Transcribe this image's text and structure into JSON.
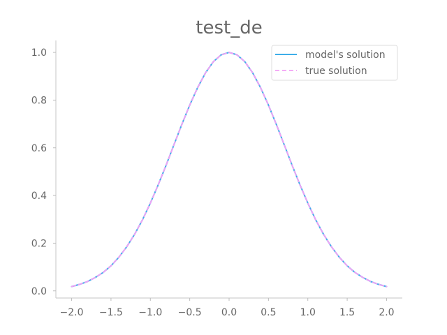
{
  "chart_data": {
    "type": "line",
    "title": "test_de",
    "xlabel": "",
    "ylabel": "",
    "xlim": [
      -2.2,
      2.2
    ],
    "ylim": [
      -0.03,
      1.05
    ],
    "x_ticks": [
      -2.0,
      -1.5,
      -1.0,
      -0.5,
      0.0,
      0.5,
      1.0,
      1.5,
      2.0
    ],
    "x_tick_labels": [
      "−2.0",
      "−1.5",
      "−1.0",
      "−0.5",
      "0.0",
      "0.5",
      "1.0",
      "1.5",
      "2.0"
    ],
    "y_ticks": [
      0.0,
      0.2,
      0.4,
      0.6,
      0.8,
      1.0
    ],
    "y_tick_labels": [
      "0.0",
      "0.2",
      "0.4",
      "0.6",
      "0.8",
      "1.0"
    ],
    "grid": false,
    "legend_position": "top-right",
    "series": [
      {
        "name": "model's solution",
        "color": "#3daee9",
        "line_style": "solid",
        "x": [
          -2.0,
          -1.9,
          -1.8,
          -1.7,
          -1.6,
          -1.5,
          -1.4,
          -1.3,
          -1.2,
          -1.1,
          -1.0,
          -0.9,
          -0.8,
          -0.7,
          -0.6,
          -0.5,
          -0.4,
          -0.3,
          -0.2,
          -0.1,
          0.0,
          0.1,
          0.2,
          0.3,
          0.4,
          0.5,
          0.6,
          0.7,
          0.8,
          0.9,
          1.0,
          1.1,
          1.2,
          1.3,
          1.4,
          1.5,
          1.6,
          1.7,
          1.8,
          1.9,
          2.0
        ],
        "y": [
          0.018,
          0.027,
          0.039,
          0.056,
          0.077,
          0.105,
          0.141,
          0.185,
          0.237,
          0.298,
          0.368,
          0.445,
          0.527,
          0.613,
          0.698,
          0.779,
          0.852,
          0.914,
          0.961,
          0.99,
          1.0,
          0.99,
          0.961,
          0.914,
          0.852,
          0.779,
          0.698,
          0.613,
          0.527,
          0.445,
          0.368,
          0.298,
          0.237,
          0.185,
          0.141,
          0.105,
          0.077,
          0.056,
          0.039,
          0.027,
          0.018
        ]
      },
      {
        "name": "true solution",
        "color": "#f2a0f5",
        "line_style": "dashed",
        "x": [
          -2.0,
          -1.9,
          -1.8,
          -1.7,
          -1.6,
          -1.5,
          -1.4,
          -1.3,
          -1.2,
          -1.1,
          -1.0,
          -0.9,
          -0.8,
          -0.7,
          -0.6,
          -0.5,
          -0.4,
          -0.3,
          -0.2,
          -0.1,
          0.0,
          0.1,
          0.2,
          0.3,
          0.4,
          0.5,
          0.6,
          0.7,
          0.8,
          0.9,
          1.0,
          1.1,
          1.2,
          1.3,
          1.4,
          1.5,
          1.6,
          1.7,
          1.8,
          1.9,
          2.0
        ],
        "y": [
          0.018,
          0.027,
          0.039,
          0.056,
          0.077,
          0.105,
          0.141,
          0.185,
          0.237,
          0.298,
          0.368,
          0.445,
          0.527,
          0.613,
          0.698,
          0.779,
          0.852,
          0.914,
          0.961,
          0.99,
          1.0,
          0.99,
          0.961,
          0.914,
          0.852,
          0.779,
          0.698,
          0.613,
          0.527,
          0.445,
          0.368,
          0.298,
          0.237,
          0.185,
          0.141,
          0.105,
          0.077,
          0.056,
          0.039,
          0.027,
          0.018
        ]
      }
    ]
  }
}
